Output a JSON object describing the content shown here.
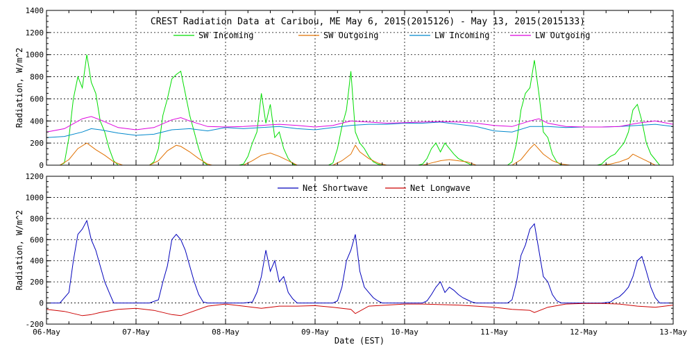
{
  "chart_data": [
    {
      "type": "line",
      "title": "CREST Radiation Data at Caribou, ME   May  6, 2015(2015126) - May 13, 2015(2015133)",
      "xlabel": "",
      "ylabel": "Radiation, W/m^2",
      "xlim": [
        0,
        7
      ],
      "ylim": [
        0,
        1400
      ],
      "yticks": [
        0,
        200,
        400,
        600,
        800,
        1000,
        1200,
        1400
      ],
      "grid": true,
      "legend_position": "top",
      "series": [
        {
          "name": "SW Incoming",
          "color": "#00dd00",
          "x": [
            0.0,
            0.1,
            0.15,
            0.2,
            0.25,
            0.3,
            0.35,
            0.4,
            0.45,
            0.5,
            0.55,
            0.6,
            0.65,
            0.7,
            0.75,
            0.8,
            0.85,
            1.0,
            1.15,
            1.2,
            1.25,
            1.3,
            1.35,
            1.4,
            1.45,
            1.5,
            1.55,
            1.6,
            1.65,
            1.7,
            1.75,
            1.8,
            1.85,
            2.0,
            2.15,
            2.2,
            2.25,
            2.3,
            2.35,
            2.4,
            2.45,
            2.5,
            2.55,
            2.6,
            2.65,
            2.7,
            2.75,
            2.8,
            2.85,
            3.0,
            3.15,
            3.2,
            3.25,
            3.3,
            3.35,
            3.4,
            3.45,
            3.5,
            3.55,
            3.6,
            3.65,
            3.7,
            3.75,
            3.8,
            3.85,
            4.0,
            4.15,
            4.2,
            4.25,
            4.3,
            4.35,
            4.4,
            4.45,
            4.5,
            4.55,
            4.6,
            4.65,
            4.7,
            4.75,
            4.8,
            4.85,
            5.0,
            5.15,
            5.2,
            5.25,
            5.3,
            5.35,
            5.4,
            5.45,
            5.5,
            5.55,
            5.6,
            5.65,
            5.7,
            5.75,
            5.8,
            5.85,
            6.0,
            6.15,
            6.2,
            6.25,
            6.3,
            6.35,
            6.4,
            6.45,
            6.5,
            6.55,
            6.6,
            6.65,
            6.7,
            6.75,
            6.8,
            6.85,
            7.0
          ],
          "y": [
            0,
            0,
            0,
            20,
            250,
            600,
            800,
            700,
            1000,
            750,
            650,
            400,
            300,
            150,
            40,
            0,
            0,
            0,
            0,
            30,
            150,
            450,
            600,
            780,
            820,
            850,
            650,
            450,
            300,
            150,
            30,
            0,
            0,
            0,
            0,
            10,
            80,
            200,
            300,
            650,
            380,
            550,
            250,
            300,
            150,
            60,
            10,
            0,
            0,
            0,
            0,
            20,
            150,
            350,
            500,
            850,
            300,
            200,
            150,
            80,
            30,
            10,
            0,
            0,
            0,
            0,
            0,
            10,
            60,
            150,
            200,
            120,
            200,
            150,
            100,
            60,
            40,
            20,
            0,
            0,
            0,
            0,
            0,
            30,
            200,
            500,
            650,
            700,
            950,
            650,
            300,
            250,
            100,
            30,
            0,
            0,
            0,
            0,
            0,
            10,
            50,
            80,
            100,
            150,
            200,
            300,
            500,
            550,
            400,
            200,
            100,
            50,
            0,
            0
          ]
        },
        {
          "name": "SW Outgoing",
          "color": "#e07000",
          "x": [
            0.0,
            0.15,
            0.25,
            0.35,
            0.45,
            0.55,
            0.65,
            0.75,
            0.85,
            1.15,
            1.25,
            1.35,
            1.45,
            1.5,
            1.6,
            1.7,
            1.8,
            1.85,
            2.2,
            2.3,
            2.4,
            2.5,
            2.6,
            2.7,
            2.8,
            3.2,
            3.3,
            3.4,
            3.45,
            3.5,
            3.6,
            3.7,
            3.8,
            4.2,
            4.3,
            4.4,
            4.5,
            4.6,
            4.7,
            4.8,
            5.2,
            5.3,
            5.4,
            5.45,
            5.55,
            5.65,
            5.75,
            5.85,
            6.2,
            6.3,
            6.4,
            6.5,
            6.55,
            6.6,
            6.7,
            6.8,
            7.0
          ],
          "y": [
            0,
            0,
            50,
            150,
            200,
            140,
            90,
            30,
            0,
            0,
            40,
            130,
            180,
            170,
            120,
            60,
            10,
            0,
            0,
            40,
            90,
            110,
            80,
            40,
            0,
            0,
            40,
            100,
            180,
            120,
            60,
            20,
            0,
            0,
            20,
            40,
            50,
            40,
            30,
            0,
            0,
            50,
            150,
            190,
            100,
            40,
            10,
            0,
            0,
            10,
            30,
            60,
            100,
            80,
            40,
            0,
            0
          ]
        },
        {
          "name": "LW Incoming",
          "color": "#0088cc",
          "x": [
            0.0,
            0.2,
            0.4,
            0.5,
            0.6,
            0.8,
            1.0,
            1.2,
            1.4,
            1.6,
            1.8,
            2.0,
            2.2,
            2.4,
            2.6,
            2.8,
            3.0,
            3.2,
            3.4,
            3.6,
            3.8,
            4.0,
            4.2,
            4.4,
            4.6,
            4.8,
            5.0,
            5.2,
            5.4,
            5.6,
            5.8,
            6.0,
            6.2,
            6.4,
            6.6,
            6.8,
            7.0
          ],
          "y": [
            250,
            260,
            300,
            330,
            320,
            290,
            270,
            280,
            320,
            330,
            310,
            340,
            330,
            340,
            350,
            330,
            320,
            340,
            360,
            370,
            370,
            380,
            380,
            390,
            370,
            350,
            310,
            300,
            350,
            350,
            340,
            345,
            345,
            350,
            360,
            370,
            350
          ]
        },
        {
          "name": "LW Outgoing",
          "color": "#dd00dd",
          "x": [
            0.0,
            0.2,
            0.4,
            0.5,
            0.6,
            0.8,
            1.0,
            1.2,
            1.4,
            1.5,
            1.6,
            1.8,
            2.0,
            2.2,
            2.4,
            2.6,
            2.8,
            3.0,
            3.2,
            3.4,
            3.6,
            3.8,
            4.0,
            4.2,
            4.4,
            4.6,
            4.8,
            5.0,
            5.2,
            5.4,
            5.5,
            5.6,
            5.8,
            6.0,
            6.2,
            6.4,
            6.6,
            6.8,
            7.0
          ],
          "y": [
            300,
            330,
            420,
            440,
            410,
            340,
            320,
            340,
            410,
            430,
            400,
            350,
            345,
            350,
            360,
            370,
            360,
            345,
            360,
            400,
            390,
            380,
            385,
            390,
            395,
            390,
            380,
            360,
            350,
            400,
            420,
            380,
            350,
            345,
            345,
            350,
            380,
            400,
            370
          ]
        }
      ]
    },
    {
      "type": "line",
      "title": "",
      "xlabel": "Date (EST)",
      "ylabel": "Radiation, W/m^2",
      "xlim": [
        0,
        7
      ],
      "ylim": [
        -200,
        1200
      ],
      "yticks": [
        -200,
        0,
        200,
        400,
        600,
        800,
        1000,
        1200
      ],
      "xtick_labels": [
        "06-May",
        "07-May",
        "08-May",
        "09-May",
        "10-May",
        "11-May",
        "12-May",
        "13-May"
      ],
      "grid": true,
      "legend_position": "top",
      "series": [
        {
          "name": "Net Shortwave",
          "color": "#0000bb",
          "x": [
            0.0,
            0.15,
            0.25,
            0.3,
            0.35,
            0.4,
            0.45,
            0.5,
            0.55,
            0.6,
            0.65,
            0.7,
            0.75,
            0.8,
            0.85,
            1.0,
            1.15,
            1.25,
            1.3,
            1.35,
            1.4,
            1.45,
            1.5,
            1.55,
            1.6,
            1.65,
            1.7,
            1.75,
            1.8,
            1.85,
            2.0,
            2.2,
            2.3,
            2.35,
            2.4,
            2.45,
            2.5,
            2.55,
            2.6,
            2.65,
            2.7,
            2.75,
            2.8,
            2.85,
            3.0,
            3.2,
            3.25,
            3.3,
            3.35,
            3.4,
            3.45,
            3.5,
            3.55,
            3.6,
            3.65,
            3.7,
            3.75,
            3.8,
            3.85,
            4.0,
            4.2,
            4.25,
            4.3,
            4.35,
            4.4,
            4.45,
            4.5,
            4.55,
            4.6,
            4.65,
            4.7,
            4.75,
            4.8,
            4.85,
            5.0,
            5.15,
            5.2,
            5.25,
            5.3,
            5.35,
            5.4,
            5.45,
            5.5,
            5.55,
            5.6,
            5.65,
            5.7,
            5.75,
            5.8,
            5.85,
            6.0,
            6.2,
            6.3,
            6.35,
            6.4,
            6.45,
            6.5,
            6.55,
            6.6,
            6.65,
            6.7,
            6.75,
            6.8,
            6.85,
            7.0
          ],
          "y": [
            0,
            0,
            100,
            400,
            650,
            700,
            780,
            600,
            500,
            350,
            200,
            100,
            0,
            0,
            0,
            0,
            0,
            30,
            200,
            350,
            600,
            650,
            600,
            500,
            350,
            200,
            80,
            10,
            0,
            0,
            0,
            0,
            10,
            100,
            250,
            500,
            300,
            400,
            200,
            250,
            100,
            40,
            0,
            0,
            0,
            0,
            20,
            150,
            400,
            500,
            650,
            300,
            150,
            100,
            50,
            20,
            0,
            0,
            0,
            0,
            0,
            20,
            80,
            150,
            200,
            100,
            150,
            120,
            80,
            50,
            30,
            10,
            0,
            0,
            0,
            0,
            30,
            200,
            450,
            550,
            700,
            750,
            500,
            250,
            200,
            80,
            20,
            0,
            0,
            0,
            0,
            0,
            10,
            40,
            60,
            100,
            150,
            250,
            400,
            440,
            300,
            150,
            50,
            0,
            0
          ]
        },
        {
          "name": "Net Longwave",
          "color": "#cc0000",
          "x": [
            0.0,
            0.2,
            0.4,
            0.5,
            0.6,
            0.8,
            1.0,
            1.2,
            1.4,
            1.5,
            1.6,
            1.8,
            2.0,
            2.2,
            2.4,
            2.5,
            2.6,
            2.8,
            3.0,
            3.2,
            3.4,
            3.45,
            3.6,
            3.8,
            4.0,
            4.2,
            4.4,
            4.6,
            4.8,
            5.0,
            5.2,
            5.4,
            5.45,
            5.6,
            5.8,
            6.0,
            6.2,
            6.4,
            6.6,
            6.8,
            7.0
          ],
          "y": [
            -60,
            -80,
            -120,
            -110,
            -90,
            -60,
            -50,
            -70,
            -110,
            -120,
            -90,
            -30,
            -10,
            -30,
            -50,
            -40,
            -30,
            -30,
            -25,
            -40,
            -60,
            -100,
            -30,
            -20,
            -10,
            -10,
            -15,
            -20,
            -30,
            -40,
            -60,
            -70,
            -90,
            -40,
            -10,
            -5,
            -5,
            -10,
            -30,
            -40,
            -20
          ]
        }
      ]
    }
  ]
}
